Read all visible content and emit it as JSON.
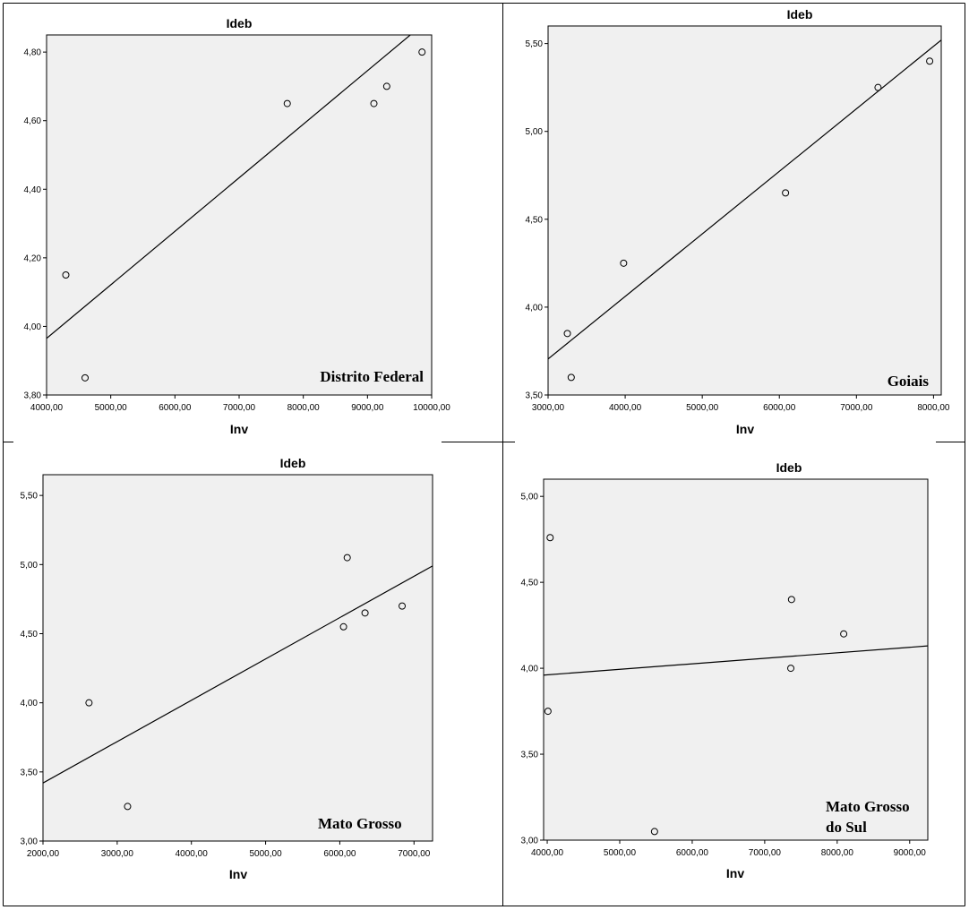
{
  "chart_data": [
    {
      "type": "scatter",
      "title": "Ideb",
      "xlabel": "Inv",
      "ylabel": "",
      "panel_label": [
        "Distrito Federal"
      ],
      "xlim": [
        4000,
        10000
      ],
      "ylim": [
        3.8,
        4.85
      ],
      "xticks": [
        4000,
        5000,
        6000,
        7000,
        8000,
        9000,
        10000
      ],
      "yticks": [
        3.8,
        4.0,
        4.2,
        4.4,
        4.6,
        4.8
      ],
      "xtick_labels": [
        "4000,00",
        "5000,00",
        "6000,00",
        "7000,00",
        "8000,00",
        "9000,00",
        "10000,00"
      ],
      "ytick_labels": [
        "3,80",
        "4,00",
        "4,20",
        "4,40",
        "4,60",
        "4,80"
      ],
      "points": [
        {
          "x": 4300,
          "y": 4.15
        },
        {
          "x": 4600,
          "y": 3.85
        },
        {
          "x": 7750,
          "y": 4.65
        },
        {
          "x": 9100,
          "y": 4.65
        },
        {
          "x": 9300,
          "y": 4.7
        },
        {
          "x": 9850,
          "y": 4.8
        }
      ],
      "fit_line": [
        {
          "x": 4000,
          "y": 3.965
        },
        {
          "x": 9700,
          "y": 4.855
        }
      ],
      "grid": false
    },
    {
      "type": "scatter",
      "title": "Ideb",
      "xlabel": "Inv",
      "ylabel": "",
      "panel_label": [
        "Goiais"
      ],
      "xlim": [
        3000,
        8100
      ],
      "ylim": [
        3.5,
        5.6
      ],
      "xticks": [
        3000,
        4000,
        5000,
        6000,
        7000,
        8000
      ],
      "yticks": [
        3.5,
        4.0,
        4.5,
        5.0,
        5.5
      ],
      "xtick_labels": [
        "3000,00",
        "4000,00",
        "5000,00",
        "6000,00",
        "7000,00",
        "8000,00"
      ],
      "ytick_labels": [
        "3,50",
        "4,00",
        "4,50",
        "5,00",
        "5,50"
      ],
      "points": [
        {
          "x": 3250,
          "y": 3.85
        },
        {
          "x": 3300,
          "y": 3.6
        },
        {
          "x": 3980,
          "y": 4.25
        },
        {
          "x": 6080,
          "y": 4.65
        },
        {
          "x": 7280,
          "y": 5.25
        },
        {
          "x": 7950,
          "y": 5.4
        }
      ],
      "fit_line": [
        {
          "x": 3000,
          "y": 3.705
        },
        {
          "x": 8100,
          "y": 5.52
        }
      ],
      "grid": false
    },
    {
      "type": "scatter",
      "title": "Ideb",
      "xlabel": "Inv",
      "ylabel": "",
      "panel_label": [
        "Mato Grosso"
      ],
      "xlim": [
        2000,
        7250
      ],
      "ylim": [
        3.0,
        5.65
      ],
      "xticks": [
        2000,
        3000,
        4000,
        5000,
        6000,
        7000
      ],
      "yticks": [
        3.0,
        3.5,
        4.0,
        4.5,
        5.0,
        5.5
      ],
      "xtick_labels": [
        "2000,00",
        "3000,00",
        "4000,00",
        "5000,00",
        "6000,00",
        "7000,00"
      ],
      "ytick_labels": [
        "3,00",
        "3,50",
        "4,00",
        "4,50",
        "5,00",
        "5,50"
      ],
      "points": [
        {
          "x": 2620,
          "y": 4.0
        },
        {
          "x": 3140,
          "y": 3.25
        },
        {
          "x": 6050,
          "y": 4.55
        },
        {
          "x": 6100,
          "y": 5.05
        },
        {
          "x": 6340,
          "y": 4.65
        },
        {
          "x": 6840,
          "y": 4.7
        }
      ],
      "fit_line": [
        {
          "x": 2000,
          "y": 3.42
        },
        {
          "x": 7250,
          "y": 4.99
        }
      ],
      "grid": false
    },
    {
      "type": "scatter",
      "title": "Ideb",
      "xlabel": "Inv",
      "ylabel": "",
      "panel_label": [
        "Mato Grosso",
        "do Sul"
      ],
      "xlim": [
        3950,
        9250
      ],
      "ylim": [
        3.0,
        5.1
      ],
      "xticks": [
        4000,
        5000,
        6000,
        7000,
        8000,
        9000
      ],
      "yticks": [
        3.0,
        3.5,
        4.0,
        4.5,
        5.0
      ],
      "xtick_labels": [
        "4000,00",
        "5000,00",
        "6000,00",
        "7000,00",
        "8000,00",
        "9000,00"
      ],
      "ytick_labels": [
        "3,00",
        "3,50",
        "4,00",
        "4,50",
        "5,00"
      ],
      "points": [
        {
          "x": 4040,
          "y": 4.76
        },
        {
          "x": 4010,
          "y": 3.75
        },
        {
          "x": 5480,
          "y": 3.05
        },
        {
          "x": 7370,
          "y": 4.4
        },
        {
          "x": 7360,
          "y": 4.0
        },
        {
          "x": 8090,
          "y": 4.2
        }
      ],
      "fit_line": [
        {
          "x": 3950,
          "y": 3.96
        },
        {
          "x": 9250,
          "y": 4.13
        }
      ],
      "grid": false
    }
  ]
}
